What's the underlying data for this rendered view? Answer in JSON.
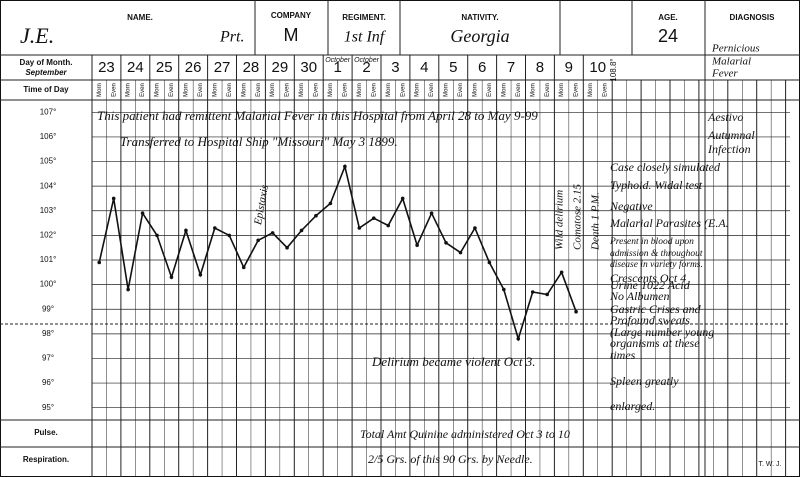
{
  "header": {
    "name_label": "NAME.",
    "name": "J.E.",
    "rank": "Prt.",
    "company_label": "COMPANY",
    "company": "M",
    "regiment_label": "REGIMENT.",
    "regiment": "1st Inf",
    "nativity_label": "NATIVITY.",
    "nativity": "Georgia",
    "age_label": "AGE.",
    "age": "24",
    "diagnosis_label": "DIAGNOSIS",
    "diagnosis": [
      "Pernicious",
      "Malarial",
      "Fever"
    ]
  },
  "row_labels": {
    "day": "Day of Month.",
    "month": "September",
    "time": "Time of Day",
    "pulse": "Pulse.",
    "respiration": "Respiration."
  },
  "signature": "T. W. J.",
  "chart_data": {
    "type": "line",
    "days": [
      "23",
      "24",
      "25",
      "26",
      "27",
      "28",
      "29",
      "30",
      "1",
      "2",
      "3",
      "4",
      "5",
      "6",
      "7",
      "8",
      "9",
      "10"
    ],
    "month_labels": [
      {
        "day_index": 8,
        "label": "October"
      },
      {
        "day_index": 9,
        "label": "October"
      }
    ],
    "categories": [
      "Morn",
      "Even",
      "Morn",
      "Even",
      "Morn",
      "Even",
      "Morn",
      "Even",
      "Morn",
      "Even",
      "Morn",
      "Even",
      "Morn",
      "Even",
      "Morn",
      "Even",
      "Morn",
      "Even",
      "Morn",
      "Even",
      "Morn",
      "Even",
      "Morn",
      "Even",
      "Morn",
      "Even",
      "Morn",
      "Even",
      "Morn",
      "Even",
      "Morn",
      "Even",
      "Morn",
      "Even",
      "Morn",
      "Even"
    ],
    "values": [
      100.9,
      103.5,
      99.8,
      102.9,
      102.0,
      100.3,
      102.2,
      100.4,
      102.3,
      102.0,
      100.7,
      101.8,
      102.1,
      101.5,
      102.2,
      102.8,
      103.3,
      104.8,
      102.3,
      102.7,
      102.4,
      103.5,
      101.6,
      102.9,
      101.7,
      101.3,
      102.3,
      100.9,
      99.8,
      97.8,
      99.7,
      99.6,
      100.5,
      98.9,
      null,
      null
    ],
    "color": "#111111",
    "ylim": [
      94.5,
      107.5
    ],
    "yticks": [
      {
        "value": 107,
        "label": "107°"
      },
      {
        "value": 106,
        "label": "106°"
      },
      {
        "value": 105,
        "label": "105°"
      },
      {
        "value": 104,
        "label": "104°"
      },
      {
        "value": 103,
        "label": "103°"
      },
      {
        "value": 102,
        "label": "102°"
      },
      {
        "value": 101,
        "label": "101°"
      },
      {
        "value": 100,
        "label": "100°"
      },
      {
        "value": 99,
        "label": "99°"
      },
      {
        "value": 98,
        "label": "98°"
      },
      {
        "value": 97,
        "label": "97°"
      },
      {
        "value": 96,
        "label": "96°"
      },
      {
        "value": 95,
        "label": "95°"
      }
    ],
    "normal_line": 98.4,
    "grid": true,
    "death_temp": "108.8°",
    "annotations": [
      "This patient had remittent Malarial Fever in this Hospital from April 28 to May 9-99",
      "Transferred to Hospital Ship \"Missouri\" May 3 1899.",
      "Epistaxis",
      "Delirium became violent Oct 3.",
      "Total Amt Quinine administered Oct 3 to 10",
      "2/5 Grs. of this 90 Grs. by Needle."
    ],
    "vertical_notes": [
      "Wild delirium",
      "Comatose 2.15",
      "Death 1 P.M."
    ],
    "notes": [
      "Case closely simulated",
      "Typhoid. Widal test",
      "Negative",
      "Malarial Parasites (E.A.",
      "Present in blood upon",
      "admission & throughout",
      "disease in variety forms.",
      "Crescents Oct 4",
      "Urine 1022 Acid",
      "No Albumen",
      "Gastric Crises and",
      "Profound sweats",
      "(Large number young",
      "organisms at these",
      "times",
      "Spleen greatly",
      "enlarged."
    ],
    "diagnosis_notes": [
      "Aestivo",
      "Autumnal",
      "Infection"
    ]
  }
}
